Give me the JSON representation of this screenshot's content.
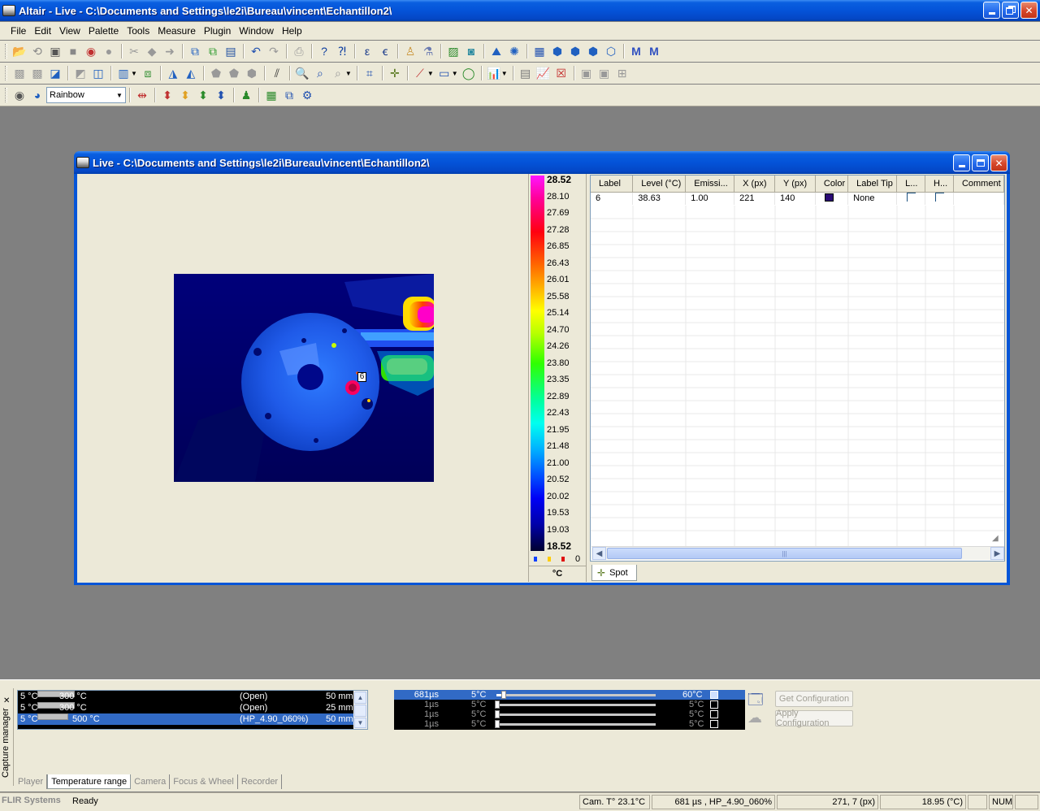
{
  "app": {
    "title": "Altair - Live - C:\\Documents and Settings\\le2i\\Bureau\\vincent\\Echantillon2\\"
  },
  "menu": [
    "File",
    "Edit",
    "View",
    "Palette",
    "Tools",
    "Measure",
    "Plugin",
    "Window",
    "Help"
  ],
  "toolbar3": {
    "palette_value": "Rainbow"
  },
  "child": {
    "title": "Live - C:\\Documents and Settings\\le2i\\Bureau\\vincent\\Echantillon2\\",
    "spot_label": "6"
  },
  "colorbar": {
    "labels": [
      "28.52",
      "28.10",
      "27.69",
      "27.28",
      "26.85",
      "26.43",
      "26.01",
      "25.58",
      "25.14",
      "24.70",
      "24.26",
      "23.80",
      "23.35",
      "22.89",
      "22.43",
      "21.95",
      "21.48",
      "21.00",
      "20.52",
      "20.02",
      "19.53",
      "19.03",
      "18.52"
    ],
    "count_value": "0",
    "unit": "°C"
  },
  "grid": {
    "columns": [
      "Label",
      "Level (°C)",
      "Emissi...",
      "X (px)",
      "Y (px)",
      "Color",
      "Label Tip",
      "L...",
      "H...",
      "Comment"
    ],
    "rows": [
      {
        "label": "6",
        "level": "38.63",
        "emissivity": "1.00",
        "x": "221",
        "y": "140",
        "color": "#2b0a75",
        "label_tip": "None",
        "comment": ""
      }
    ],
    "tab": "Spot"
  },
  "capture": {
    "side_label": "Capture manager",
    "ranges": [
      {
        "min": "5 °C",
        "max": "300 °C",
        "filter": "(Open)",
        "lens": "50 mm"
      },
      {
        "min": "5 °C",
        "max": "300 °C",
        "filter": "(Open)",
        "lens": "25 mm"
      },
      {
        "min": "5 °C",
        "max": "500 °C",
        "filter": "(HP_4.90_060%)",
        "lens": "50 mm"
      }
    ],
    "integration": [
      {
        "time": "681µs",
        "min": "5°C",
        "max": "60°C",
        "level": 0.05
      },
      {
        "time": "1µs",
        "min": "5°C",
        "max": "5°C",
        "level": 0
      },
      {
        "time": "1µs",
        "min": "5°C",
        "max": "5°C",
        "level": 0
      },
      {
        "time": "1µs",
        "min": "5°C",
        "max": "5°C",
        "level": 0
      }
    ],
    "buttons": {
      "get": "Get Configuration",
      "apply": "Apply Configuration"
    },
    "tabs": [
      "Player",
      "Temperature range",
      "Camera",
      "Focus & Wheel",
      "Recorder"
    ]
  },
  "status": {
    "brand": "FLIR Systems",
    "state": "Ready",
    "cam_temp": "Cam. T° 23.1°C",
    "config": "681 µs , HP_4.90_060%",
    "cursor": "271,   7 (px)",
    "temp": "18.95 (°C)",
    "num": "NUM"
  },
  "colors": {
    "titlebar": "#0453d8",
    "selection": "#316ac5",
    "workspace": "#808080"
  }
}
